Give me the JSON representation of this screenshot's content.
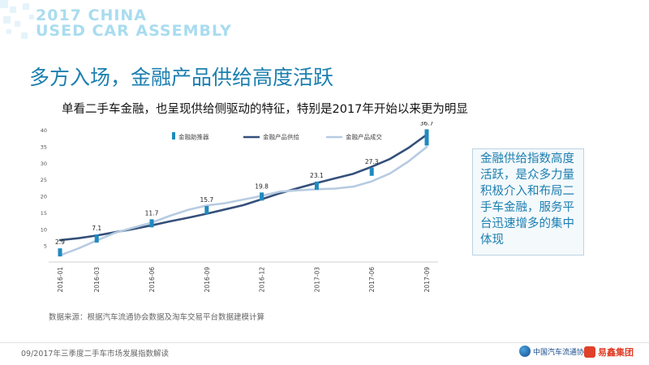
{
  "header": {
    "logo_line1": "2017 CHINA",
    "logo_line2": "USED CAR ASSEMBLY"
  },
  "slide": {
    "title": "多方入场，金融产品供给高度活跃",
    "subtitle": "单看二手车金融，也呈现供给侧驱动的特征，特别是2017年开始以来更为明显"
  },
  "callout": {
    "text": "金融供给指数高度活跃，是众多力量积极介入和布局二手车金融，服务平台迅速增多的集中体现"
  },
  "footer": {
    "source": "数据来源：根据汽车流通协会数据及淘车交易平台数据建模计算",
    "left": "09/2017年三季度二手车市场发展指数解读",
    "logo_assoc": "中国汽车流通协会",
    "logo_yixin": "易鑫集团"
  },
  "colors": {
    "accent": "#1c7fb0",
    "bar": "#1f8ac0",
    "supply_line": "#34507a",
    "deal_line": "#b7cbe2"
  },
  "chart_data": {
    "type": "line",
    "x": [
      "2016-01",
      "2016-02",
      "2016-03",
      "2016-04",
      "2016-05",
      "2016-06",
      "2016-07",
      "2016-08",
      "2016-09",
      "2016-10",
      "2016-11",
      "2016-12",
      "2017-01",
      "2017-02",
      "2017-03",
      "2017-04",
      "2017-05",
      "2017-06",
      "2017-07",
      "2017-08",
      "2017-09"
    ],
    "xtick_labels": [
      "2016-01",
      "2016-03",
      "2016-06",
      "2016-09",
      "2016-12",
      "2017-03",
      "2017-06",
      "2017-09"
    ],
    "ylim": [
      0,
      40
    ],
    "yticks": [
      5,
      10,
      15,
      20,
      25,
      30,
      35,
      40
    ],
    "legend_position": "top",
    "grid": false,
    "series": [
      {
        "name": "金融助推器",
        "kind": "bar",
        "points": [
          {
            "x": "2016-01",
            "value": 2.9,
            "label": "2.9"
          },
          {
            "x": "2016-03",
            "value": 7.1,
            "label": "7.1"
          },
          {
            "x": "2016-06",
            "value": 11.7,
            "label": "11.7"
          },
          {
            "x": "2016-09",
            "value": 15.7,
            "label": "15.7"
          },
          {
            "x": "2016-12",
            "value": 19.8,
            "label": "19.8"
          },
          {
            "x": "2017-03",
            "value": 23.1,
            "label": "23.1"
          },
          {
            "x": "2017-06",
            "value": 27.3,
            "label": "27.3"
          },
          {
            "x": "2017-09",
            "value": 36.7,
            "label": "36.7"
          }
        ]
      },
      {
        "name": "金融产品供给",
        "kind": "line",
        "values": [
          6.6,
          7.2,
          8.0,
          9.0,
          10.0,
          11.1,
          12.3,
          13.4,
          14.6,
          15.9,
          17.2,
          19.0,
          20.8,
          22.4,
          23.9,
          25.3,
          26.7,
          28.8,
          31.2,
          34.5,
          38.5
        ]
      },
      {
        "name": "金融产品成交",
        "kind": "line",
        "values": [
          2.0,
          4.1,
          6.5,
          8.8,
          10.4,
          11.9,
          14.0,
          15.8,
          17.1,
          17.8,
          18.9,
          20.0,
          21.3,
          21.7,
          22.0,
          22.2,
          22.8,
          24.4,
          26.8,
          30.4,
          34.8
        ]
      }
    ]
  }
}
